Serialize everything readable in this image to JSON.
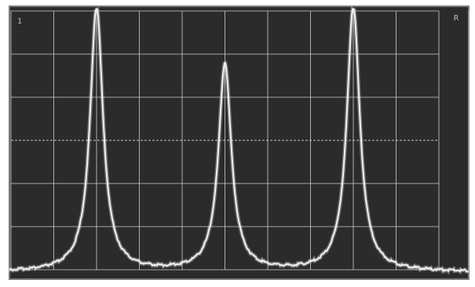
{
  "scope": {
    "screen_color": "#2b2b2b",
    "grid_color": "#d8d8d8",
    "trace_color": "#f2f2f2",
    "border_color": "#7a7a7a",
    "divisions_x": 10,
    "divisions_y": 6,
    "corner_marks": {
      "left": "1",
      "right": "R"
    },
    "trace": {
      "baseline_level": 0.015,
      "peak_width": 0.018,
      "peaks": [
        {
          "position_div": 2.0,
          "amplitude": 1.0
        },
        {
          "position_div": 5.0,
          "amplitude": 0.78
        },
        {
          "position_div": 8.0,
          "amplitude": 1.0
        }
      ]
    }
  }
}
